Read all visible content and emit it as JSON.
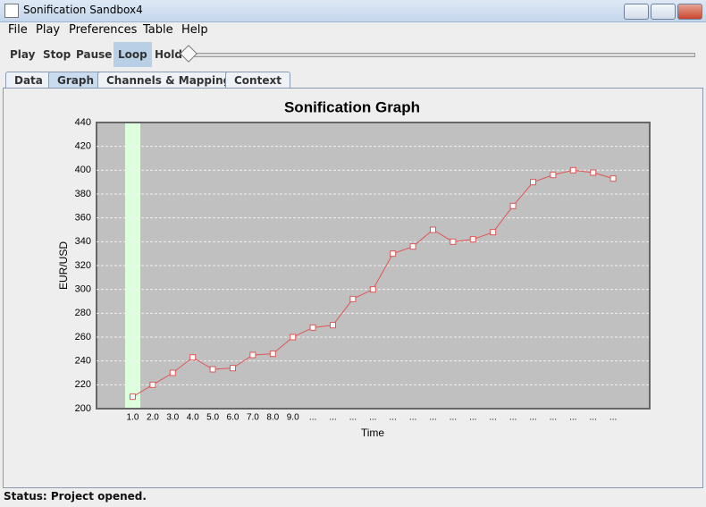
{
  "window": {
    "title": "Sonification Sandbox4"
  },
  "menu": [
    "File",
    "Play",
    "Preferences",
    "Table",
    "Help"
  ],
  "toolbar": [
    "Play",
    "Stop",
    "Pause",
    "Loop",
    "Hold"
  ],
  "tabs": [
    "Data",
    "Graph",
    "Channels & Mappings",
    "Context"
  ],
  "status": "Status: Project opened.",
  "chart_data": {
    "type": "line",
    "title": "Sonification Graph",
    "x_label": "Time",
    "y_label": "EUR/USD",
    "categories": [
      "1.0",
      "2.0",
      "3.0",
      "4.0",
      "5.0",
      "6.0",
      "7.0",
      "8.0",
      "9.0",
      "...",
      "...",
      "...",
      "...",
      "...",
      "...",
      "...",
      "...",
      "...",
      "...",
      "...",
      "...",
      "...",
      "...",
      "...",
      "..."
    ],
    "series": [
      {
        "name": "EUR/USD",
        "color": "#e05555",
        "values": [
          210,
          220,
          230,
          243,
          233,
          234,
          245,
          246,
          260,
          268,
          270,
          292,
          300,
          330,
          336,
          350,
          340,
          342,
          348,
          370,
          390,
          396,
          400,
          398,
          393
        ]
      }
    ],
    "ylim": [
      200,
      440
    ],
    "yticks": [
      200,
      220,
      240,
      260,
      280,
      300,
      320,
      340,
      360,
      380,
      400,
      420,
      440
    ],
    "grid": true
  }
}
